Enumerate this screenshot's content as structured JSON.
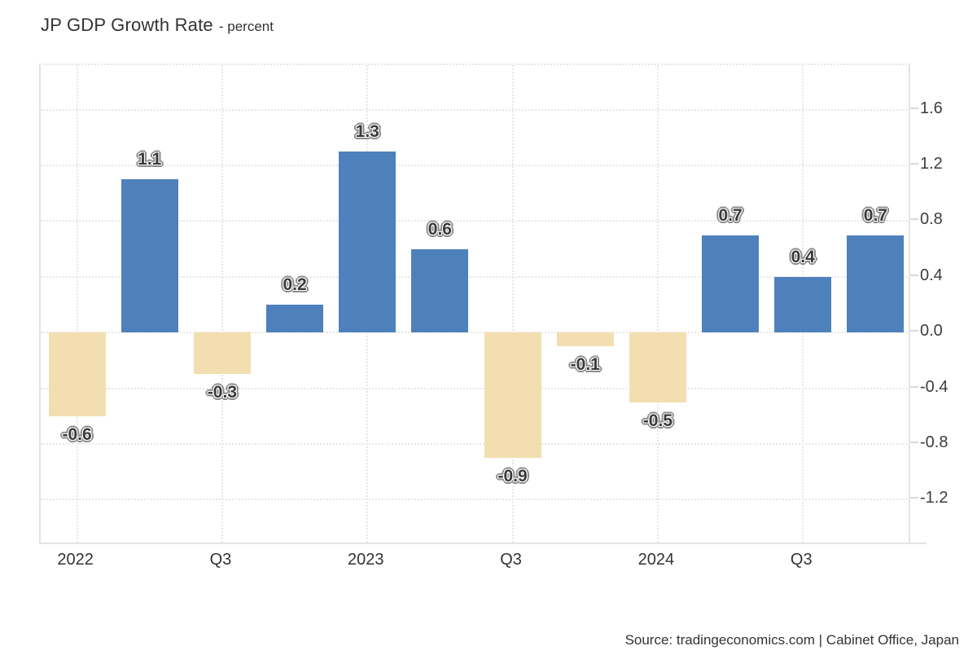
{
  "header": {
    "title": "JP GDP Growth Rate",
    "subtitle": "- percent"
  },
  "footer": {
    "source": "Source: tradingeconomics.com | Cabinet Office, Japan"
  },
  "chart_data": {
    "type": "bar",
    "title": "JP GDP Growth Rate",
    "ylabel": "percent",
    "xlabel": "",
    "categories": [
      "2022",
      "",
      "Q3",
      "",
      "2023",
      "",
      "Q3",
      "",
      "2024",
      "",
      "Q3",
      ""
    ],
    "values": [
      -0.6,
      1.1,
      -0.3,
      0.2,
      1.3,
      0.6,
      -0.9,
      -0.1,
      -0.5,
      0.7,
      0.4,
      0.7
    ],
    "value_labels": [
      "-0.6",
      "1.1",
      "-0.3",
      "0.2",
      "1.3",
      "0.6",
      "-0.9",
      "-0.1",
      "-0.5",
      "0.7",
      "0.4",
      "0.7"
    ],
    "y_ticks": [
      1.6,
      1.2,
      0.8,
      0.4,
      0.0,
      -0.4,
      -0.8,
      -1.2
    ],
    "y_tick_labels": [
      "1.6",
      "1.2",
      "0.8",
      "0.4",
      "0.0",
      "-0.4",
      "-0.8",
      "-1.2"
    ],
    "ylim": [
      -1.52,
      1.92
    ],
    "grid": "dotted, horizontal at every tick, vertical at labeled categories",
    "legend_position": "none",
    "colors": {
      "positive_bar": "#4e80bc",
      "negative_bar": "#f3deb1",
      "gridline": "#e7e7e7",
      "axis_line": "#e3e3e3",
      "label_text": "#3a3a3a",
      "label_halo": "#8d8d8d"
    }
  }
}
